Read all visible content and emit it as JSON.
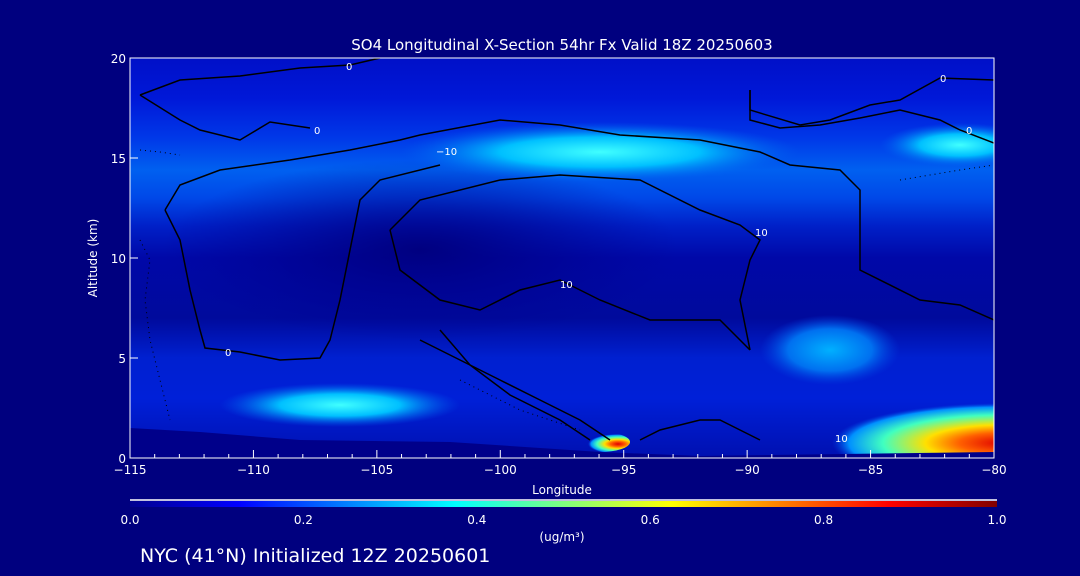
{
  "chart_data": {
    "type": "heatmap",
    "title": "SO4 Longitudinal X-Section 54hr  Fx Valid 18Z 20250603",
    "xlabel": "Longitude",
    "ylabel": "Altitude (km)",
    "xlim": [
      -115,
      -80
    ],
    "ylim": [
      0,
      20
    ],
    "x_ticks": [
      -115,
      -110,
      -105,
      -100,
      -95,
      -90,
      -85,
      -80
    ],
    "x_tick_labels": [
      "−115",
      "−110",
      "−105",
      "−100",
      "−95",
      "−90",
      "−85",
      "−80"
    ],
    "y_ticks": [
      0,
      5,
      10,
      15,
      20
    ],
    "y_tick_labels": [
      "0",
      "5",
      "10",
      "15",
      "20"
    ],
    "colorbar": {
      "range": [
        0.0,
        1.0
      ],
      "ticks": [
        "0.0",
        "0.2",
        "0.4",
        "0.6",
        "0.8",
        "1.0"
      ],
      "units": "(ug/m³)",
      "colormap": [
        "#00008f",
        "#0000ff",
        "#00ffff",
        "#ffff00",
        "#ff0000",
        "#800000"
      ]
    },
    "contour_labels": [
      "0",
      "0",
      "0",
      "0",
      "−10",
      "10",
      "10",
      "10",
      "0"
    ],
    "features": [
      {
        "lon": [
          -100,
          -88
        ],
        "alt": [
          14,
          16
        ],
        "value": 0.4
      },
      {
        "lon": [
          -87,
          -80
        ],
        "alt": [
          0,
          2
        ],
        "value": 0.9
      },
      {
        "lon": [
          -110,
          -103
        ],
        "alt": [
          1.5,
          3
        ],
        "value": 0.35
      },
      {
        "lon": [
          -88,
          -84
        ],
        "alt": [
          4,
          6
        ],
        "value": 0.25
      }
    ]
  },
  "footer": "NYC (41°N) Initialized 12Z 20250601"
}
